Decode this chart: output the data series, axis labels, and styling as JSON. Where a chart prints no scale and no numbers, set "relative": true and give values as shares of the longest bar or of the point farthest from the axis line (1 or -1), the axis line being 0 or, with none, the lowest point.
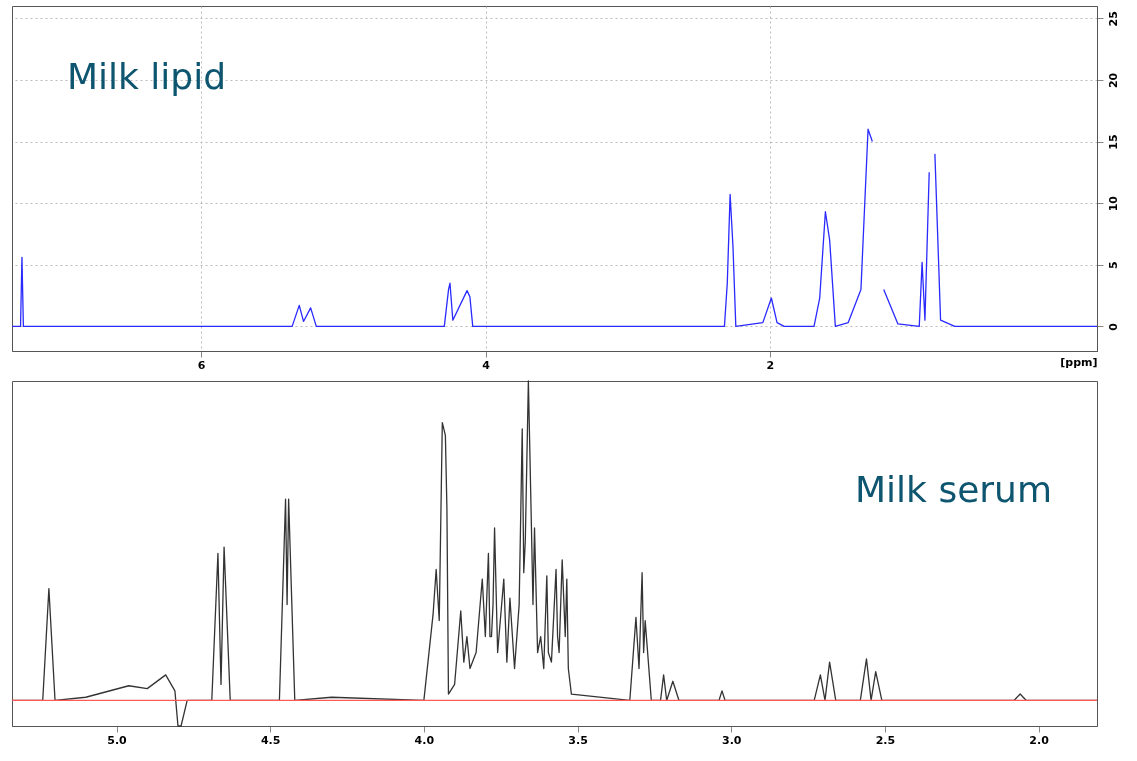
{
  "chart_data": [
    {
      "type": "line",
      "xlim": [
        7.33,
        -0.3
      ],
      "ylim": [
        -2,
        26
      ],
      "xticks": [
        6,
        4,
        2
      ],
      "yticks": [
        0,
        5,
        10,
        15,
        20,
        25
      ],
      "xlabel": "[ppm]",
      "grid": true,
      "series": [
        {
          "name": "Milk lipid",
          "color": "#2a2aff",
          "x": [
            7.33,
            7.27,
            7.26,
            7.25,
            5.36,
            5.31,
            5.28,
            5.23,
            5.19,
            4.29,
            4.26,
            4.25,
            4.23,
            4.13,
            4.11,
            4.09,
            2.32,
            2.3,
            2.28,
            2.26,
            2.24,
            2.05,
            1.99,
            1.95,
            1.9,
            1.69,
            1.65,
            1.61,
            1.58,
            1.54,
            1.45,
            1.36,
            1.31,
            1.28,
            1.26,
            1.23,
            1.2,
            1.1,
            0.95,
            0.93,
            0.91,
            0.88,
            0.86,
            0.84,
            0.8,
            0.7,
            -0.3
          ],
          "values": [
            0,
            0,
            5.6,
            0,
            0,
            1.7,
            0.4,
            1.5,
            0,
            0,
            3,
            3.5,
            0.5,
            2.9,
            2.4,
            0,
            0,
            3.5,
            10.7,
            6.5,
            0,
            0.3,
            2.3,
            0.3,
            0,
            0,
            2.3,
            9.3,
            7,
            0,
            0.3,
            3,
            16,
            15,
            null,
            null,
            3,
            0.2,
            0,
            5.2,
            0.5,
            12.5,
            null,
            14,
            0.5,
            0,
            0
          ]
        }
      ]
    },
    {
      "type": "line",
      "relative": true,
      "xlim": [
        5.34,
        1.81
      ],
      "xticks": [
        {
          "value": 5,
          "label": "5.0"
        },
        {
          "value": 4.5,
          "label": "4.5"
        },
        {
          "value": 4,
          "label": "4.0"
        },
        {
          "value": 3.5,
          "label": "3.5"
        },
        {
          "value": 3,
          "label": "3.0"
        },
        {
          "value": 2.5,
          "label": "2.5"
        },
        {
          "value": 2,
          "label": "2.0"
        }
      ],
      "tick_labels": "x",
      "ref_lines": [
        {
          "axis": "y",
          "value": 0,
          "color": "#ff5a5a"
        }
      ],
      "series": [
        {
          "name": "Milk serum",
          "color": "#333333",
          "x": [
            5.34,
            5.24,
            5.22,
            5.2,
            5.1,
            4.96,
            4.9,
            4.84,
            4.81,
            4.8,
            4.79,
            4.77,
            4.69,
            4.67,
            4.66,
            4.65,
            4.63,
            4.47,
            4.45,
            4.445,
            4.44,
            4.42,
            4.3,
            4.0,
            3.97,
            3.96,
            3.95,
            3.94,
            3.93,
            3.925,
            3.92,
            3.9,
            3.88,
            3.87,
            3.86,
            3.85,
            3.83,
            3.81,
            3.8,
            3.79,
            3.785,
            3.78,
            3.775,
            3.77,
            3.76,
            3.74,
            3.73,
            3.72,
            3.705,
            3.69,
            3.68,
            3.675,
            3.67,
            3.66,
            3.65,
            3.645,
            3.64,
            3.63,
            3.62,
            3.61,
            3.6,
            3.595,
            3.585,
            3.57,
            3.565,
            3.56,
            3.55,
            3.54,
            3.535,
            3.53,
            3.52,
            3.33,
            3.31,
            3.3,
            3.29,
            3.285,
            3.28,
            3.26,
            3.23,
            3.22,
            3.21,
            3.19,
            3.17,
            3.04,
            3.03,
            3.02,
            2.73,
            2.71,
            2.695,
            2.68,
            2.66,
            2.58,
            2.56,
            2.545,
            2.53,
            2.51,
            2.08,
            2.06,
            2.04,
            1.81
          ],
          "values": [
            0,
            0,
            0.35,
            0,
            0.01,
            0.046,
            0.037,
            0.08,
            0.03,
            -0.08,
            -0.08,
            0,
            0,
            0.46,
            0.05,
            0.48,
            0,
            0,
            0.63,
            0.3,
            0.63,
            0,
            0.01,
            0,
            0.27,
            0.41,
            0.25,
            0.87,
            0.83,
            0.6,
            0.02,
            0.05,
            0.28,
            0.12,
            0.2,
            0.1,
            0.15,
            0.38,
            0.2,
            0.46,
            0.2,
            0.2,
            0.3,
            0.54,
            0.15,
            0.38,
            0.12,
            0.32,
            0.1,
            0.3,
            0.85,
            0.4,
            0.5,
            1,
            0.54,
            0.3,
            0.54,
            0.15,
            0.2,
            0.1,
            0.39,
            0.15,
            0.12,
            0.41,
            0.2,
            0.15,
            0.44,
            0.2,
            0.38,
            0.1,
            0.02,
            0,
            0.26,
            0.1,
            0.4,
            0.15,
            0.25,
            0,
            0,
            0.08,
            0,
            0.06,
            0,
            0,
            0.03,
            0,
            0,
            0.08,
            0,
            0.12,
            0,
            0,
            0.13,
            0,
            0.09,
            0,
            0,
            0.02,
            0,
            0
          ]
        }
      ]
    }
  ]
}
